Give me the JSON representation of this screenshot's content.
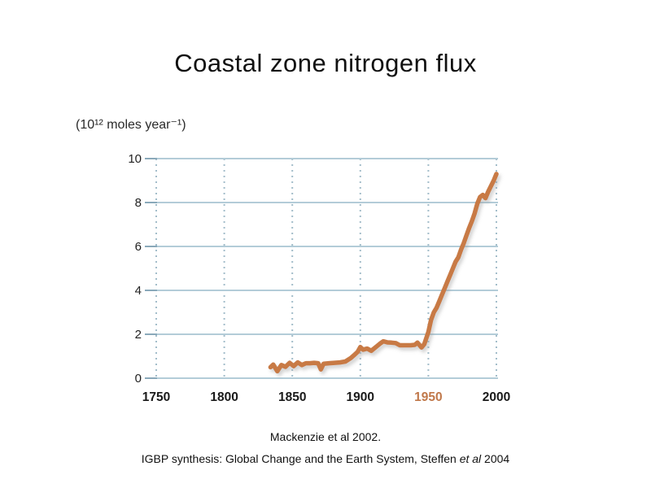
{
  "slide": {
    "title": "Coastal zone nitrogen flux",
    "captions": {
      "line1": "Mackenzie et al 2002.",
      "line2_prefix": "IGBP synthesis: Global Change and the Earth System, Steffen ",
      "line2_italic": "et al",
      "line2_suffix": " 2004"
    }
  },
  "chart_data": {
    "type": "line",
    "title": "Coastal zone nitrogen flux",
    "ylabel": "(10¹² moles year⁻¹)",
    "xlabel": "",
    "xlim": [
      1750,
      2000
    ],
    "ylim": [
      0,
      10
    ],
    "y_ticks": [
      0,
      2,
      4,
      6,
      8,
      10
    ],
    "x_ticks": [
      {
        "label": "1750",
        "value": 1750,
        "color": "#1a1a1a"
      },
      {
        "label": "1800",
        "value": 1800,
        "color": "#1a1a1a"
      },
      {
        "label": "1850",
        "value": 1850,
        "color": "#1a1a1a"
      },
      {
        "label": "1900",
        "value": 1900,
        "color": "#1a1a1a"
      },
      {
        "label": "1950",
        "value": 1950,
        "color": "#c0784a"
      },
      {
        "label": "2000",
        "value": 2000,
        "color": "#1a1a1a"
      }
    ],
    "grid": {
      "horizontal_style": "solid",
      "vertical_style": "dotted",
      "horizontal_color": "#b3ccd8",
      "vertical_color": "#a3bdca",
      "tick_color": "#8aa9ba"
    },
    "legend": "none",
    "highlighted_x_tick": "1950",
    "series": [
      {
        "name": "Coastal zone nitrogen flux",
        "color": "#c87a45",
        "points": [
          [
            1834,
            0.5
          ],
          [
            1836,
            0.62
          ],
          [
            1839,
            0.32
          ],
          [
            1842,
            0.6
          ],
          [
            1845,
            0.52
          ],
          [
            1848,
            0.7
          ],
          [
            1851,
            0.55
          ],
          [
            1854,
            0.72
          ],
          [
            1857,
            0.6
          ],
          [
            1860,
            0.68
          ],
          [
            1863,
            0.68
          ],
          [
            1866,
            0.7
          ],
          [
            1869,
            0.68
          ],
          [
            1871,
            0.4
          ],
          [
            1873,
            0.66
          ],
          [
            1877,
            0.68
          ],
          [
            1881,
            0.7
          ],
          [
            1885,
            0.72
          ],
          [
            1889,
            0.76
          ],
          [
            1893,
            0.92
          ],
          [
            1896,
            1.08
          ],
          [
            1898,
            1.2
          ],
          [
            1900,
            1.42
          ],
          [
            1902,
            1.3
          ],
          [
            1905,
            1.35
          ],
          [
            1908,
            1.25
          ],
          [
            1912,
            1.45
          ],
          [
            1915,
            1.6
          ],
          [
            1917,
            1.68
          ],
          [
            1920,
            1.63
          ],
          [
            1923,
            1.62
          ],
          [
            1926,
            1.6
          ],
          [
            1929,
            1.5
          ],
          [
            1933,
            1.5
          ],
          [
            1937,
            1.5
          ],
          [
            1940,
            1.52
          ],
          [
            1942,
            1.62
          ],
          [
            1945,
            1.4
          ],
          [
            1947,
            1.55
          ],
          [
            1950,
            2.1
          ],
          [
            1952,
            2.65
          ],
          [
            1954,
            3.0
          ],
          [
            1956,
            3.2
          ],
          [
            1958,
            3.5
          ],
          [
            1960,
            3.8
          ],
          [
            1962,
            4.1
          ],
          [
            1964,
            4.4
          ],
          [
            1966,
            4.7
          ],
          [
            1968,
            5.0
          ],
          [
            1970,
            5.3
          ],
          [
            1972,
            5.5
          ],
          [
            1974,
            5.85
          ],
          [
            1976,
            6.15
          ],
          [
            1978,
            6.5
          ],
          [
            1980,
            6.85
          ],
          [
            1982,
            7.15
          ],
          [
            1984,
            7.5
          ],
          [
            1986,
            7.95
          ],
          [
            1988,
            8.25
          ],
          [
            1990,
            8.35
          ],
          [
            1992,
            8.2
          ],
          [
            1994,
            8.5
          ],
          [
            1996,
            8.75
          ],
          [
            1998,
            9.0
          ],
          [
            2000,
            9.3
          ]
        ]
      }
    ]
  }
}
